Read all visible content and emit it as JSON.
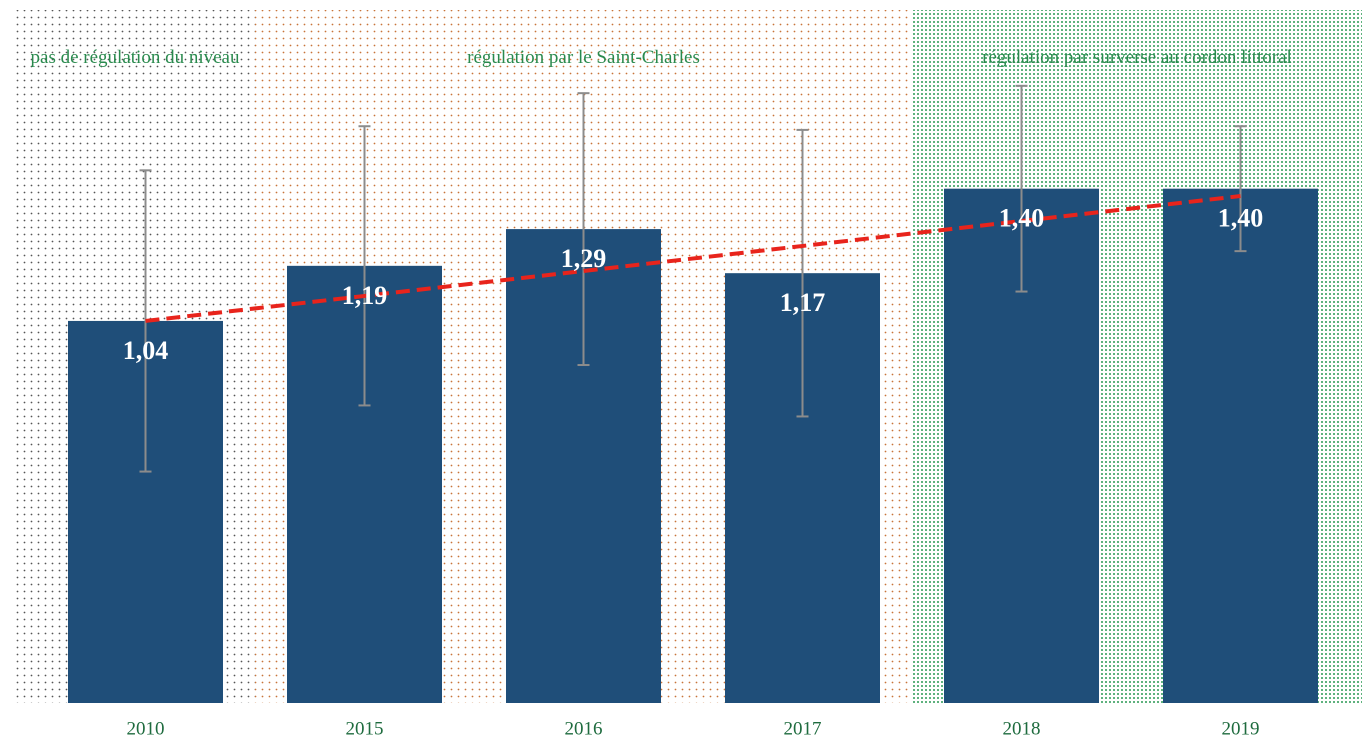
{
  "chart_data": {
    "type": "bar",
    "categories": [
      "2010",
      "2015",
      "2016",
      "2017",
      "2018",
      "2019"
    ],
    "values": [
      1.04,
      1.19,
      1.29,
      1.17,
      1.4,
      1.4
    ],
    "value_labels": [
      "1,04",
      "1,19",
      "1,29",
      "1,17",
      "1,40",
      "1,40"
    ],
    "errors": [
      0.41,
      0.38,
      0.37,
      0.39,
      0.28,
      0.17
    ],
    "color": "#1f4e79",
    "error_color": "#8c8c8c",
    "ylim": [
      0,
      1.9
    ],
    "trendline": {
      "color": "#e8241c",
      "values": [
        1.04,
        1.38
      ]
    },
    "regions": [
      {
        "label": "pas de régulation du niveau",
        "from": 0,
        "to": 0,
        "color": "#555555",
        "density": "sparse"
      },
      {
        "label": "régulation par le Saint-Charles",
        "from": 1,
        "to": 3,
        "color": "#c8743a",
        "density": "sparse"
      },
      {
        "label": "régulation par surverse au cordon littoral",
        "from": 4,
        "to": 5,
        "color": "#2a9a55",
        "density": "dense"
      }
    ]
  }
}
